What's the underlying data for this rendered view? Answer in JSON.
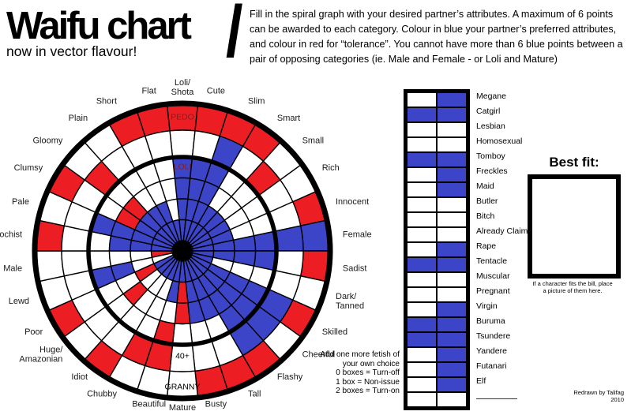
{
  "title": "Waifu chart",
  "title_slash": "/",
  "subtitle": "now in vector flavour!",
  "instructions": "Fill in the spiral graph with your desired partner’s attributes. A maximum of 6 points can be awarded to each category. Colour in blue your partner’s preferred attributes, and colour in red for “tolerance”. You cannot have more than 6 blue points between a pair of opposing categories (ie. Male and Female - or Loli and Mature)",
  "colors": {
    "blue": "#3c45c8",
    "red": "#ec1e24",
    "white": "#ffffff",
    "zone_label_red": "#8c1b1b",
    "black": "#000000"
  },
  "chart_data": {
    "type": "radial-grid",
    "sectors": 30,
    "rings_per_sector": 6,
    "max_points_per_category": 6,
    "legend": {
      "B": "blue = preferred",
      "R": "red = tolerance",
      "W": "white = empty"
    },
    "categories": [
      {
        "label": "Loli/Shota",
        "cells": "RWBBBB"
      },
      {
        "label": "Cute",
        "cells": "RWBBBB"
      },
      {
        "label": "Slim",
        "cells": "RBBBBB"
      },
      {
        "label": "Smart",
        "cells": "RWWWBB"
      },
      {
        "label": "Small",
        "cells": "WRWWBB"
      },
      {
        "label": "Rich",
        "cells": "WWWWBB"
      },
      {
        "label": "Innocent",
        "cells": "RWWWBB"
      },
      {
        "label": "Female",
        "cells": "BBBBBB"
      },
      {
        "label": "Sadist",
        "cells": "RWBBBB"
      },
      {
        "label": "Dark/Tanned",
        "cells": "WWWWWB"
      },
      {
        "label": "Skilled",
        "cells": "RBBBBB"
      },
      {
        "label": "Cheerful",
        "cells": "WBBBBB"
      },
      {
        "label": "Flashy",
        "cells": "RBBBBB"
      },
      {
        "label": "Tall",
        "cells": "RWWBBB"
      },
      {
        "label": "Busty",
        "cells": "RWWBBB"
      },
      {
        "label": "Mature",
        "cells": "WWWRRB"
      },
      {
        "label": "Beautiful",
        "cells": "WRRWBB"
      },
      {
        "label": "Chubby",
        "cells": "WRWWWB"
      },
      {
        "label": "Idiot",
        "cells": "RWWWWB"
      },
      {
        "label": "Huge/Amazonian",
        "cells": "WWWRWB"
      },
      {
        "label": "Poor",
        "cells": "RWWWRB"
      },
      {
        "label": "Lewd",
        "cells": "WWBBWW"
      },
      {
        "label": "Male",
        "cells": "WWWWWR"
      },
      {
        "label": "Masochist",
        "cells": "RWWBBB"
      },
      {
        "label": "Pale",
        "cells": "WWBBBB"
      },
      {
        "label": "Clumsy",
        "cells": "RWWRBB"
      },
      {
        "label": "Gloomy",
        "cells": "WRWRBB"
      },
      {
        "label": "Plain",
        "cells": "WWWWBB"
      },
      {
        "label": "Short",
        "cells": "RWWWBB"
      },
      {
        "label": "Flat",
        "cells": "RWWWWB"
      }
    ],
    "zone_labels": [
      {
        "text": "PEDO",
        "angle": 90,
        "r": 170,
        "color": "#8c1b1b"
      },
      {
        "text": "LOLI",
        "angle": 90,
        "r": 107,
        "color": "#8c1b1b"
      },
      {
        "text": "GRANNY",
        "angle": 270,
        "r": 172,
        "color": "#000000"
      },
      {
        "text": "40+",
        "angle": 270,
        "r": 133,
        "color": "#000000"
      }
    ]
  },
  "checklist": {
    "items": [
      {
        "label": "Megane",
        "checks": [
          0,
          1
        ]
      },
      {
        "label": "Catgirl",
        "checks": [
          1,
          1
        ]
      },
      {
        "label": "Lesbian",
        "checks": [
          0,
          0
        ]
      },
      {
        "label": "Homosexual",
        "checks": [
          0,
          0
        ]
      },
      {
        "label": "Tomboy",
        "checks": [
          1,
          1
        ]
      },
      {
        "label": "Freckles",
        "checks": [
          0,
          1
        ]
      },
      {
        "label": "Maid",
        "checks": [
          0,
          1
        ]
      },
      {
        "label": "Butler",
        "checks": [
          0,
          0
        ]
      },
      {
        "label": "Bitch",
        "checks": [
          0,
          0
        ]
      },
      {
        "label": "Already Claimed",
        "checks": [
          0,
          0
        ]
      },
      {
        "label": "Rape",
        "checks": [
          0,
          1
        ]
      },
      {
        "label": "Tentacle",
        "checks": [
          1,
          1
        ]
      },
      {
        "label": "Muscular",
        "checks": [
          0,
          0
        ]
      },
      {
        "label": "Pregnant",
        "checks": [
          0,
          0
        ]
      },
      {
        "label": "Virgin",
        "checks": [
          0,
          1
        ]
      },
      {
        "label": "Buruma",
        "checks": [
          1,
          1
        ]
      },
      {
        "label": "Tsundere",
        "checks": [
          1,
          1
        ]
      },
      {
        "label": "Yandere",
        "checks": [
          0,
          1
        ]
      },
      {
        "label": "Futanari",
        "checks": [
          0,
          1
        ]
      },
      {
        "label": "Elf",
        "checks": [
          0,
          1
        ]
      },
      {
        "label": "",
        "checks": [
          0,
          0
        ]
      }
    ]
  },
  "fetish_note": {
    "line1": "Add one more fetish of",
    "line2": "your own choice",
    "line3": "0 boxes = Turn-off",
    "line4": "1 box = Non-issue",
    "line5": "2 boxes = Turn-on"
  },
  "best_fit": {
    "heading": "Best fit:",
    "caption_line1": "If a character fits the bill, place",
    "caption_line2": "a picture of them here."
  },
  "credit": {
    "line1": "Redrawn by Talifag",
    "line2": "2010"
  }
}
